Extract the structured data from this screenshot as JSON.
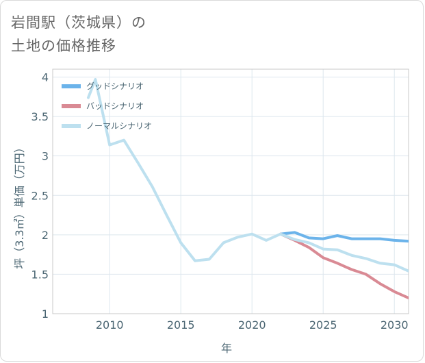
{
  "title_lines": [
    "岩間駅（茨城県）の",
    "土地の価格推移"
  ],
  "chart_data": {
    "type": "line",
    "xlabel": "年",
    "ylabel": "坪（3.3㎡）単価（万円）",
    "xlim": [
      2006,
      2031
    ],
    "ylim": [
      1,
      4.1
    ],
    "xticks": [
      2010,
      2015,
      2020,
      2025,
      2030
    ],
    "yticks": [
      1,
      1.5,
      2,
      2.5,
      3,
      3.5,
      4
    ],
    "ytick_labels": [
      "1",
      "1.5",
      "2",
      "2.5",
      "3",
      "3.5",
      "4"
    ],
    "grid": true,
    "legend_position": "top-left",
    "series": [
      {
        "name": "グッドシナリオ",
        "color": "#6bb3ea",
        "x": [
          2022,
          2023,
          2024,
          2025,
          2026,
          2027,
          2028,
          2029,
          2030,
          2031
        ],
        "y": [
          2.01,
          2.03,
          1.96,
          1.95,
          1.99,
          1.95,
          1.95,
          1.95,
          1.93,
          1.92
        ]
      },
      {
        "name": "バッドシナリオ",
        "color": "#d98a94",
        "x": [
          2022,
          2023,
          2024,
          2025,
          2026,
          2027,
          2028,
          2029,
          2030,
          2031
        ],
        "y": [
          2.01,
          1.93,
          1.84,
          1.71,
          1.64,
          1.56,
          1.5,
          1.38,
          1.28,
          1.2
        ]
      },
      {
        "name": "ノーマルシナリオ",
        "color": "#bde0ef",
        "x": [
          2008.5,
          2009,
          2010,
          2011,
          2012,
          2013,
          2014,
          2015,
          2016,
          2017,
          2018,
          2019,
          2020,
          2021,
          2022,
          2023,
          2024,
          2025,
          2026,
          2027,
          2028,
          2029,
          2030,
          2031
        ],
        "y": [
          3.74,
          3.97,
          3.14,
          3.2,
          2.91,
          2.61,
          2.25,
          1.9,
          1.67,
          1.69,
          1.9,
          1.97,
          2.01,
          1.93,
          2.01,
          1.94,
          1.9,
          1.82,
          1.81,
          1.74,
          1.7,
          1.64,
          1.62,
          1.54
        ]
      }
    ]
  }
}
